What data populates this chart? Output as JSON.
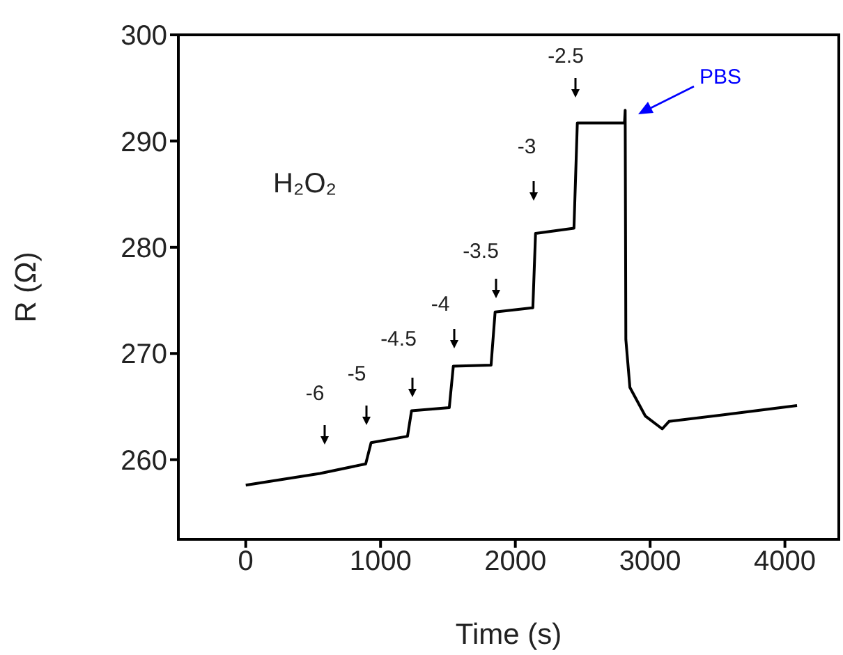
{
  "chart_data": {
    "type": "line",
    "xlabel": "Time (s)",
    "ylabel": "R (Ω)",
    "xlim": [
      -500,
      4400
    ],
    "xticks": [
      0,
      1000,
      2000,
      3000,
      4000
    ],
    "ylim": [
      252.5,
      300
    ],
    "yticks": [
      260,
      270,
      280,
      290,
      300
    ],
    "marker": "none",
    "line_style": "solid",
    "x": [
      0,
      550,
      890,
      930,
      1200,
      1230,
      1510,
      1540,
      1820,
      1850,
      2130,
      2150,
      2435,
      2460,
      2810,
      2815,
      2820,
      2850,
      2965,
      3090,
      3140,
      3525,
      4090
    ],
    "series": [
      {
        "color": "#000000",
        "values": [
          257.6,
          258.7,
          259.6,
          261.6,
          262.2,
          264.6,
          264.9,
          268.8,
          268.9,
          273.9,
          274.3,
          281.3,
          281.8,
          291.7,
          291.7,
          292.9,
          271.3,
          266.8,
          264.1,
          262.9,
          263.6,
          264.2,
          265.1
        ]
      }
    ],
    "annotations": [
      "-6",
      "-5",
      "-4.5",
      "-4",
      "-3.5",
      "-3",
      "-2.5",
      "PBS",
      "H₂O₂"
    ]
  }
}
